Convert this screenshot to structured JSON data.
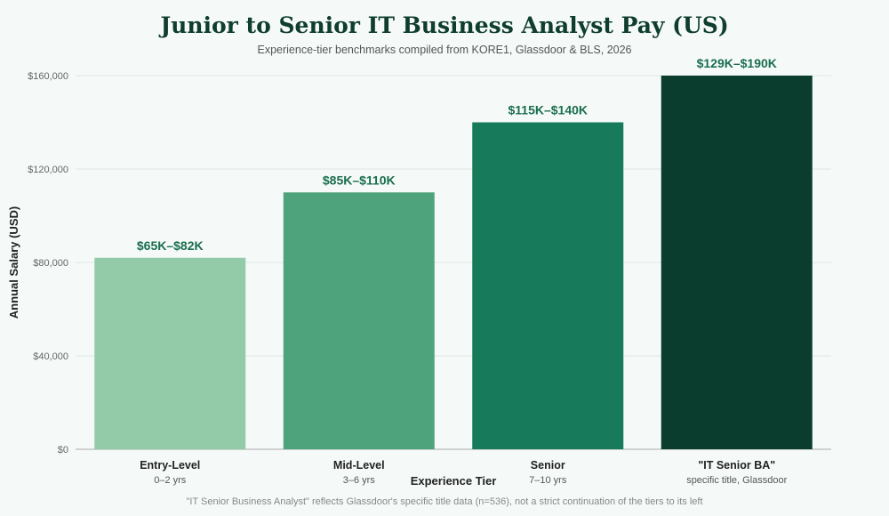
{
  "page": {
    "title": "Junior to Senior IT Business Analyst Pay (US)",
    "subtitle": "Experience-tier benchmarks compiled from KORE1, Glassdoor & BLS, 2026",
    "footnote": "\"IT Senior Business Analyst\" reflects Glassdoor's specific title data (n=536), not a strict continuation of the tiers to its left"
  },
  "chart_data": {
    "type": "bar",
    "categories": [
      "Entry-Level",
      "Mid-Level",
      "Senior",
      "\"IT Senior BA\""
    ],
    "category_sublabels": [
      "0–2 yrs",
      "3–6 yrs",
      "7–10 yrs",
      "specific title, Glassdoor"
    ],
    "values": [
      82000,
      110000,
      140000,
      160000
    ],
    "value_labels": [
      "$65K–$82K",
      "$85K–$110K",
      "$115K–$140K",
      "$129K–$190K"
    ],
    "bar_colors": [
      "#93cba9",
      "#4fa37c",
      "#177b5b",
      "#0b3d2e"
    ],
    "label_color": "#1a6e4e",
    "title": "Junior to Senior IT Business Analyst Pay (US)",
    "xlabel": "Experience Tier",
    "ylabel": "Annual Salary (USD)",
    "ylim": [
      0,
      160000
    ],
    "yticks": [
      0,
      40000,
      80000,
      120000,
      160000
    ],
    "ytick_labels": [
      "$0",
      "$40,000",
      "$80,000",
      "$120,000",
      "$160,000"
    ],
    "grid": true
  }
}
